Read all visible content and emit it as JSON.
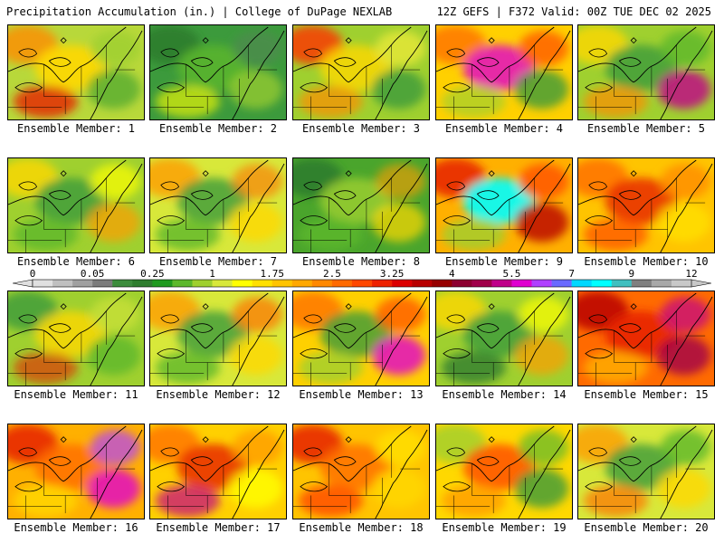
{
  "header": {
    "left": "Precipitation Accumulation (in.) | College of DuPage NEXLAB",
    "right": "12Z GEFS | F372 Valid: 00Z TUE DEC 02 2025"
  },
  "colorbar": {
    "labels": [
      "0",
      "0.05",
      "0.25",
      "1",
      "1.75",
      "2.5",
      "3.25",
      "4",
      "5.5",
      "7",
      "9",
      "12"
    ],
    "colors": [
      "#e0e0e0",
      "#c0c0c0",
      "#a0a0a0",
      "#7c7c7c",
      "#3c8c3c",
      "#2e7d2e",
      "#1f9a1f",
      "#5cb82c",
      "#9fd02f",
      "#d8e83a",
      "#ffff00",
      "#ffe000",
      "#ffc400",
      "#ffa800",
      "#ff8800",
      "#ff6a00",
      "#ff4800",
      "#ee2200",
      "#dc0000",
      "#b80000",
      "#960000",
      "#8c0030",
      "#a0004a",
      "#c0008a",
      "#e000d0",
      "#b040ff",
      "#6a6aff",
      "#00d8ff",
      "#00ffff",
      "#40c0c0",
      "#808080",
      "#a8a8a8",
      "#c8c8c8"
    ]
  },
  "members": [
    {
      "label": "Ensemble Member: 1",
      "base": "#b8d83a",
      "blobs": [
        {
          "c": "#ff8c00",
          "o": 0.8
        },
        {
          "c": "#ffd800",
          "o": 0.9
        },
        {
          "c": "#4aa52c",
          "o": 0.7
        },
        {
          "c": "#e62000",
          "o": 0.8
        },
        {
          "c": "#9fd02f",
          "o": 0.8
        }
      ]
    },
    {
      "label": "Ensemble Member: 2",
      "base": "#3c9a3c",
      "blobs": [
        {
          "c": "#2e7d2e",
          "o": 0.9
        },
        {
          "c": "#5cb82c",
          "o": 0.8
        },
        {
          "c": "#9fd02f",
          "o": 0.7
        },
        {
          "c": "#ffff00",
          "o": 0.6
        },
        {
          "c": "#4c8c4c",
          "o": 0.8
        }
      ]
    },
    {
      "label": "Ensemble Member: 3",
      "base": "#9fd02f",
      "blobs": [
        {
          "c": "#ff3000",
          "o": 0.8
        },
        {
          "c": "#ffd800",
          "o": 0.8
        },
        {
          "c": "#3c9a3c",
          "o": 0.8
        },
        {
          "c": "#ff8c00",
          "o": 0.7
        },
        {
          "c": "#e8e83a",
          "o": 0.8
        }
      ]
    },
    {
      "label": "Ensemble Member: 4",
      "base": "#ffd000",
      "blobs": [
        {
          "c": "#ff7000",
          "o": 0.8
        },
        {
          "c": "#e000d0",
          "o": 0.8
        },
        {
          "c": "#3c9a3c",
          "o": 0.8
        },
        {
          "c": "#9fd02f",
          "o": 0.7
        },
        {
          "c": "#ff4800",
          "o": 0.7
        }
      ]
    },
    {
      "label": "Ensemble Member: 5",
      "base": "#9fd02f",
      "blobs": [
        {
          "c": "#ffd800",
          "o": 0.8
        },
        {
          "c": "#3c9a3c",
          "o": 0.8
        },
        {
          "c": "#c0008a",
          "o": 0.8
        },
        {
          "c": "#ff8c00",
          "o": 0.7
        },
        {
          "c": "#5cb82c",
          "o": 0.8
        }
      ]
    },
    {
      "label": "Ensemble Member: 6",
      "base": "#9fd02f",
      "blobs": [
        {
          "c": "#ffd800",
          "o": 0.8
        },
        {
          "c": "#3c9a3c",
          "o": 0.8
        },
        {
          "c": "#ff9c00",
          "o": 0.7
        },
        {
          "c": "#5cb82c",
          "o": 0.8
        },
        {
          "c": "#ffff00",
          "o": 0.7
        }
      ]
    },
    {
      "label": "Ensemble Member: 7",
      "base": "#d8e83a",
      "blobs": [
        {
          "c": "#ff9c00",
          "o": 0.8
        },
        {
          "c": "#3c9a3c",
          "o": 0.8
        },
        {
          "c": "#ffd800",
          "o": 0.8
        },
        {
          "c": "#5cb82c",
          "o": 0.8
        },
        {
          "c": "#ff7000",
          "o": 0.6
        }
      ]
    },
    {
      "label": "Ensemble Member: 8",
      "base": "#4aa52c",
      "blobs": [
        {
          "c": "#2e7d2e",
          "o": 0.9
        },
        {
          "c": "#9fd02f",
          "o": 0.8
        },
        {
          "c": "#ffd800",
          "o": 0.7
        },
        {
          "c": "#5cb82c",
          "o": 0.8
        },
        {
          "c": "#ff9c00",
          "o": 0.6
        }
      ]
    },
    {
      "label": "Ensemble Member: 9",
      "base": "#ffb000",
      "blobs": [
        {
          "c": "#e62000",
          "o": 0.85
        },
        {
          "c": "#00ffff",
          "o": 0.9
        },
        {
          "c": "#b80000",
          "o": 0.8
        },
        {
          "c": "#9fd02f",
          "o": 0.8
        },
        {
          "c": "#ff5000",
          "o": 0.8
        }
      ]
    },
    {
      "label": "Ensemble Member: 10",
      "base": "#ffc400",
      "blobs": [
        {
          "c": "#ff6a00",
          "o": 0.8
        },
        {
          "c": "#e62000",
          "o": 0.8
        },
        {
          "c": "#ffe000",
          "o": 0.8
        },
        {
          "c": "#ff4800",
          "o": 0.7
        },
        {
          "c": "#ff8c00",
          "o": 0.8
        }
      ]
    },
    {
      "label": "Ensemble Member: 11",
      "base": "#9fd02f",
      "blobs": [
        {
          "c": "#3c9a3c",
          "o": 0.8
        },
        {
          "c": "#ffd800",
          "o": 0.8
        },
        {
          "c": "#5cb82c",
          "o": 0.8
        },
        {
          "c": "#e62000",
          "o": 0.6
        },
        {
          "c": "#c8e03a",
          "o": 0.8
        }
      ]
    },
    {
      "label": "Ensemble Member: 12",
      "base": "#d8e83a",
      "blobs": [
        {
          "c": "#ff9c00",
          "o": 0.8
        },
        {
          "c": "#3c9a3c",
          "o": 0.8
        },
        {
          "c": "#ffd800",
          "o": 0.8
        },
        {
          "c": "#5cb82c",
          "o": 0.8
        },
        {
          "c": "#ff7000",
          "o": 0.7
        }
      ]
    },
    {
      "label": "Ensemble Member: 13",
      "base": "#ffd000",
      "blobs": [
        {
          "c": "#ff7000",
          "o": 0.8
        },
        {
          "c": "#3c9a3c",
          "o": 0.8
        },
        {
          "c": "#e000d0",
          "o": 0.8
        },
        {
          "c": "#9fd02f",
          "o": 0.8
        },
        {
          "c": "#ff4800",
          "o": 0.7
        }
      ]
    },
    {
      "label": "Ensemble Member: 14",
      "base": "#9fd02f",
      "blobs": [
        {
          "c": "#ffd800",
          "o": 0.8
        },
        {
          "c": "#3c9a3c",
          "o": 0.8
        },
        {
          "c": "#ff9c00",
          "o": 0.7
        },
        {
          "c": "#2e7d2e",
          "o": 0.8
        },
        {
          "c": "#ffff00",
          "o": 0.7
        }
      ]
    },
    {
      "label": "Ensemble Member: 15",
      "base": "#ff6a00",
      "blobs": [
        {
          "c": "#b80000",
          "o": 0.85
        },
        {
          "c": "#e62000",
          "o": 0.85
        },
        {
          "c": "#a0004a",
          "o": 0.8
        },
        {
          "c": "#ffb000",
          "o": 0.8
        },
        {
          "c": "#c0008a",
          "o": 0.7
        }
      ]
    },
    {
      "label": "Ensemble Member: 16",
      "base": "#ffb000",
      "blobs": [
        {
          "c": "#e62000",
          "o": 0.85
        },
        {
          "c": "#ff6a00",
          "o": 0.8
        },
        {
          "c": "#e000d0",
          "o": 0.8
        },
        {
          "c": "#ffd800",
          "o": 0.8
        },
        {
          "c": "#b040ff",
          "o": 0.7
        }
      ]
    },
    {
      "label": "Ensemble Member: 17",
      "base": "#ffd000",
      "blobs": [
        {
          "c": "#ff7000",
          "o": 0.8
        },
        {
          "c": "#e62000",
          "o": 0.8
        },
        {
          "c": "#ffff00",
          "o": 0.8
        },
        {
          "c": "#c0008a",
          "o": 0.7
        },
        {
          "c": "#ff9c00",
          "o": 0.8
        }
      ]
    },
    {
      "label": "Ensemble Member: 18",
      "base": "#ffc400",
      "blobs": [
        {
          "c": "#e62000",
          "o": 0.85
        },
        {
          "c": "#ff6a00",
          "o": 0.8
        },
        {
          "c": "#ffd800",
          "o": 0.8
        },
        {
          "c": "#ff4800",
          "o": 0.8
        },
        {
          "c": "#ffe000",
          "o": 0.8
        }
      ]
    },
    {
      "label": "Ensemble Member: 19",
      "base": "#ffd800",
      "blobs": [
        {
          "c": "#9fd02f",
          "o": 0.8
        },
        {
          "c": "#ff4800",
          "o": 0.8
        },
        {
          "c": "#3c9a3c",
          "o": 0.8
        },
        {
          "c": "#ff9c00",
          "o": 0.8
        },
        {
          "c": "#5cb82c",
          "o": 0.7
        }
      ]
    },
    {
      "label": "Ensemble Member: 20",
      "base": "#d8e83a",
      "blobs": [
        {
          "c": "#ff9c00",
          "o": 0.8
        },
        {
          "c": "#3c9a3c",
          "o": 0.8
        },
        {
          "c": "#ffd800",
          "o": 0.8
        },
        {
          "c": "#ff7000",
          "o": 0.7
        },
        {
          "c": "#5cb82c",
          "o": 0.8
        }
      ]
    }
  ]
}
